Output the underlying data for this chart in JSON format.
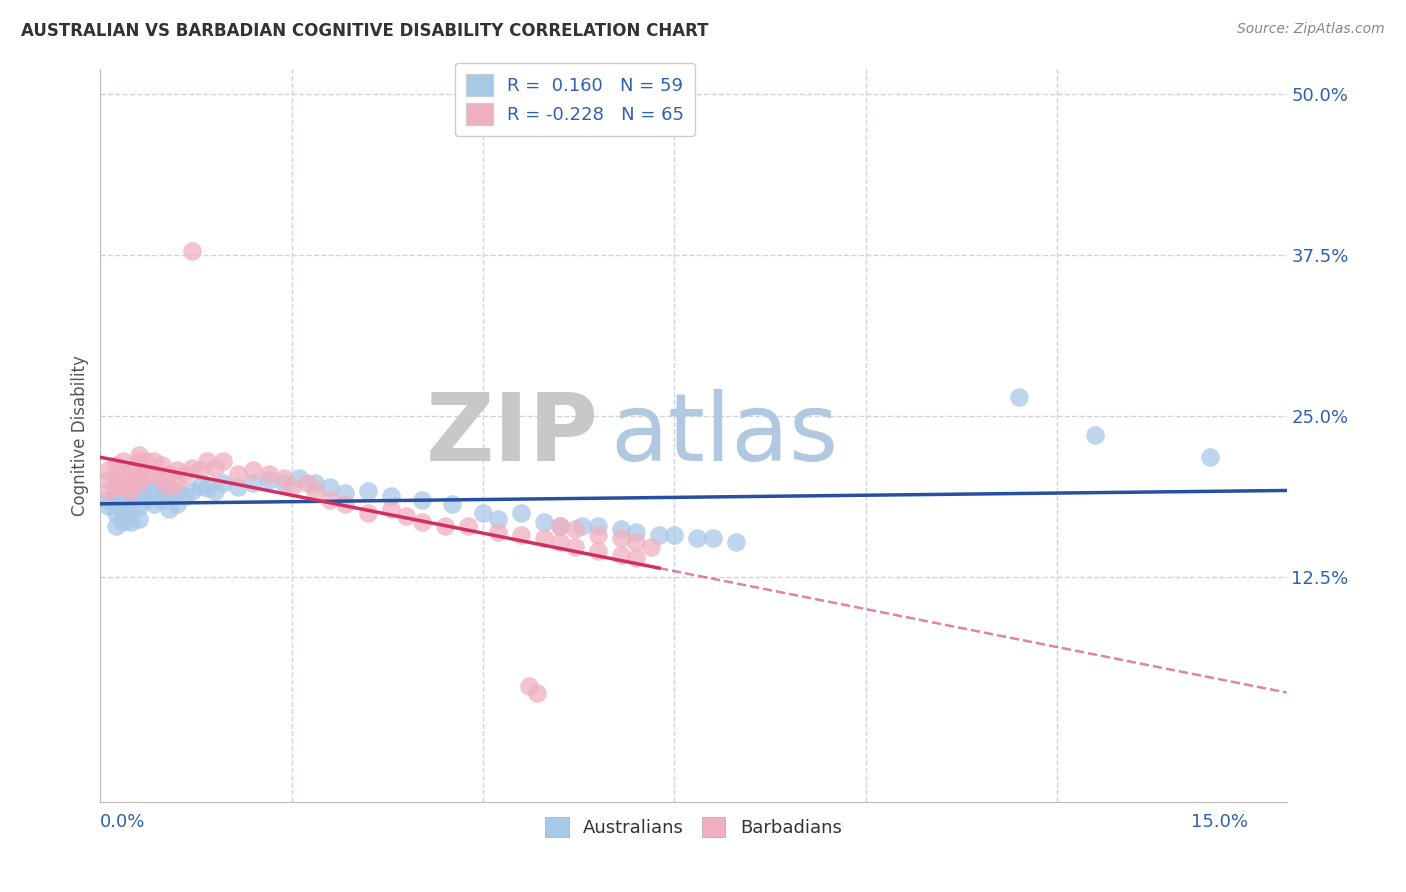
{
  "title": "AUSTRALIAN VS BARBADIAN COGNITIVE DISABILITY CORRELATION CHART",
  "source": "Source: ZipAtlas.com",
  "ylabel": "Cognitive Disability",
  "R_aus": 0.16,
  "N_aus": 59,
  "R_bar": -0.228,
  "N_bar": 65,
  "color_aus": "#a8c8e8",
  "color_bar": "#f0b0c0",
  "line_color_aus": "#2850a0",
  "line_color_bar": "#d03060",
  "background_color": "#ffffff",
  "grid_color": "#c8d4e8",
  "xlim": [
    0.0,
    0.155
  ],
  "ylim": [
    -0.05,
    0.52
  ],
  "ytick_vals": [
    0.0,
    0.125,
    0.25,
    0.375,
    0.5
  ],
  "ytick_labels": [
    "",
    "12.5%",
    "25.0%",
    "37.5%",
    "50.0%"
  ],
  "xtick_label_left": "0.0%",
  "xtick_label_right": "15.0%",
  "watermark_zip": "ZIP",
  "watermark_atlas": "atlas",
  "zip_color": "#c8c8c8",
  "atlas_color": "#b0c8e0",
  "legend_color": "#3060b0",
  "tick_label_color": "#3060b0",
  "aus_x": [
    0.001,
    0.001,
    0.002,
    0.002,
    0.002,
    0.003,
    0.003,
    0.003,
    0.004,
    0.004,
    0.004,
    0.005,
    0.005,
    0.005,
    0.006,
    0.006,
    0.007,
    0.007,
    0.008,
    0.008,
    0.009,
    0.009,
    0.01,
    0.01,
    0.011,
    0.012,
    0.013,
    0.014,
    0.015,
    0.016,
    0.018,
    0.02,
    0.022,
    0.024,
    0.026,
    0.028,
    0.03,
    0.032,
    0.035,
    0.038,
    0.042,
    0.046,
    0.05,
    0.055,
    0.06,
    0.065,
    0.07,
    0.075,
    0.08,
    0.052,
    0.058,
    0.063,
    0.068,
    0.073,
    0.078,
    0.083,
    0.12,
    0.13,
    0.145
  ],
  "aus_y": [
    0.185,
    0.18,
    0.19,
    0.175,
    0.165,
    0.185,
    0.175,
    0.168,
    0.188,
    0.178,
    0.168,
    0.19,
    0.18,
    0.17,
    0.195,
    0.185,
    0.192,
    0.182,
    0.195,
    0.185,
    0.188,
    0.178,
    0.192,
    0.182,
    0.188,
    0.192,
    0.196,
    0.194,
    0.192,
    0.198,
    0.195,
    0.198,
    0.2,
    0.198,
    0.202,
    0.198,
    0.195,
    0.19,
    0.192,
    0.188,
    0.185,
    0.182,
    0.175,
    0.175,
    0.165,
    0.165,
    0.16,
    0.158,
    0.155,
    0.17,
    0.168,
    0.165,
    0.162,
    0.158,
    0.155,
    0.152,
    0.265,
    0.235,
    0.218
  ],
  "bar_x": [
    0.001,
    0.001,
    0.001,
    0.002,
    0.002,
    0.002,
    0.003,
    0.003,
    0.003,
    0.003,
    0.004,
    0.004,
    0.004,
    0.005,
    0.005,
    0.005,
    0.006,
    0.006,
    0.007,
    0.007,
    0.008,
    0.008,
    0.009,
    0.009,
    0.01,
    0.01,
    0.011,
    0.012,
    0.013,
    0.014,
    0.015,
    0.016,
    0.018,
    0.02,
    0.022,
    0.024,
    0.025,
    0.027,
    0.028,
    0.03,
    0.032,
    0.035,
    0.038,
    0.04,
    0.042,
    0.045,
    0.048,
    0.052,
    0.055,
    0.058,
    0.06,
    0.062,
    0.065,
    0.068,
    0.07,
    0.06,
    0.062,
    0.065,
    0.068,
    0.07,
    0.072,
    0.012,
    0.005,
    0.057,
    0.056
  ],
  "bar_y": [
    0.2,
    0.192,
    0.208,
    0.2,
    0.212,
    0.195,
    0.205,
    0.195,
    0.215,
    0.198,
    0.208,
    0.2,
    0.192,
    0.215,
    0.205,
    0.198,
    0.215,
    0.205,
    0.215,
    0.205,
    0.212,
    0.2,
    0.205,
    0.195,
    0.208,
    0.198,
    0.205,
    0.21,
    0.208,
    0.215,
    0.21,
    0.215,
    0.205,
    0.208,
    0.205,
    0.202,
    0.195,
    0.198,
    0.192,
    0.185,
    0.182,
    0.175,
    0.178,
    0.172,
    0.168,
    0.165,
    0.165,
    0.16,
    0.158,
    0.155,
    0.152,
    0.148,
    0.145,
    0.142,
    0.14,
    0.165,
    0.162,
    0.158,
    0.155,
    0.152,
    0.148,
    0.378,
    0.22,
    0.035,
    0.04
  ]
}
